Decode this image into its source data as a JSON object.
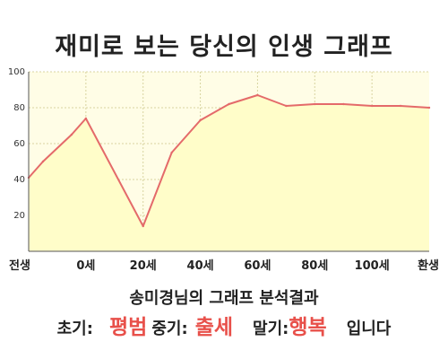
{
  "title": "재미로 보는 당신의 인생 그래프",
  "summary": {
    "heading": "송미경님의 그래프 분석결과",
    "early_label": "초기:",
    "early_value": "평범",
    "middle_label": "중기:",
    "middle_value": "출세",
    "late_label": "말기:",
    "late_value": "행복",
    "ending": "입니다"
  },
  "colors": {
    "line": "#e46a6a",
    "fill": "#fffdc9",
    "plot_bg": "#fffde6",
    "axis": "#555555",
    "accent": "#e8504a"
  },
  "chart_data": {
    "type": "area",
    "title": "",
    "xlabel": "",
    "ylabel": "",
    "x_ticks": [
      {
        "label": "전생",
        "x": -20
      },
      {
        "label": "0세",
        "x": 0
      },
      {
        "label": "20세",
        "x": 20
      },
      {
        "label": "40세",
        "x": 40
      },
      {
        "label": "60세",
        "x": 60
      },
      {
        "label": "80세",
        "x": 80
      },
      {
        "label": "100세",
        "x": 100
      },
      {
        "label": "환생",
        "x": 120
      }
    ],
    "xlim": [
      -20,
      120
    ],
    "ylim": [
      0,
      100
    ],
    "y_ticks": [
      20,
      40,
      60,
      80,
      100
    ],
    "grid": true,
    "series": [
      {
        "name": "",
        "points": [
          {
            "x": -20,
            "y": 41
          },
          {
            "x": -15,
            "y": 50
          },
          {
            "x": -5,
            "y": 65
          },
          {
            "x": 0,
            "y": 74
          },
          {
            "x": 20,
            "y": 14
          },
          {
            "x": 30,
            "y": 55
          },
          {
            "x": 40,
            "y": 73
          },
          {
            "x": 50,
            "y": 82
          },
          {
            "x": 60,
            "y": 87
          },
          {
            "x": 70,
            "y": 81
          },
          {
            "x": 80,
            "y": 82
          },
          {
            "x": 90,
            "y": 82
          },
          {
            "x": 100,
            "y": 81
          },
          {
            "x": 110,
            "y": 81
          },
          {
            "x": 120,
            "y": 80
          }
        ]
      }
    ]
  }
}
